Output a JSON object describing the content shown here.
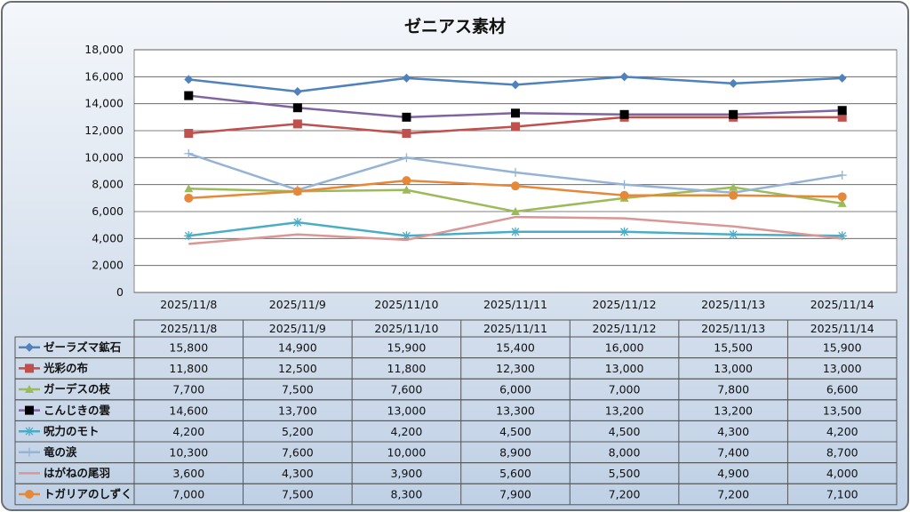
{
  "chart_data": {
    "type": "line",
    "title": "ゼニアス素材",
    "xlabel": "",
    "ylabel": "",
    "ylim": [
      0,
      18000
    ],
    "yticks": [
      "0",
      "2,000",
      "4,000",
      "6,000",
      "8,000",
      "10,000",
      "12,000",
      "14,000",
      "16,000",
      "18,000"
    ],
    "grid": true,
    "legend": "data-table-bottom",
    "categories": [
      "2025/11/8",
      "2025/11/9",
      "2025/11/10",
      "2025/11/11",
      "2025/11/12",
      "2025/11/13",
      "2025/11/14"
    ],
    "series": [
      {
        "name": "ゼーラズマ鉱石",
        "color": "#4f81bd",
        "marker": "diamond",
        "values": [
          15800,
          14900,
          15900,
          15400,
          16000,
          15500,
          15900
        ],
        "labels": [
          "15,800",
          "14,900",
          "15,900",
          "15,400",
          "16,000",
          "15,500",
          "15,900"
        ]
      },
      {
        "name": "光彩の布",
        "color": "#c0504d",
        "marker": "square",
        "values": [
          11800,
          12500,
          11800,
          12300,
          13000,
          13000,
          13000
        ],
        "labels": [
          "11,800",
          "12,500",
          "11,800",
          "12,300",
          "13,000",
          "13,000",
          "13,000"
        ]
      },
      {
        "name": "ガーデスの枝",
        "color": "#9bbb59",
        "marker": "triangle",
        "values": [
          7700,
          7500,
          7600,
          6000,
          7000,
          7800,
          6600
        ],
        "labels": [
          "7,700",
          "7,500",
          "7,600",
          "6,000",
          "7,000",
          "7,800",
          "6,600"
        ]
      },
      {
        "name": "こんじきの雲",
        "color": "#8064a2",
        "markerColor": "#000000",
        "marker": "square",
        "values": [
          14600,
          13700,
          13000,
          13300,
          13200,
          13200,
          13500
        ],
        "labels": [
          "14,600",
          "13,700",
          "13,000",
          "13,300",
          "13,200",
          "13,200",
          "13,500"
        ]
      },
      {
        "name": "呪力のモト",
        "color": "#4bacc6",
        "marker": "star",
        "values": [
          4200,
          5200,
          4200,
          4500,
          4500,
          4300,
          4200
        ],
        "labels": [
          "4,200",
          "5,200",
          "4,200",
          "4,500",
          "4,500",
          "4,300",
          "4,200"
        ]
      },
      {
        "name": "竜の涙",
        "color": "#95b3d7",
        "marker": "plus",
        "values": [
          10300,
          7600,
          10000,
          8900,
          8000,
          7400,
          8700
        ],
        "labels": [
          "10,300",
          "7,600",
          "10,000",
          "8,900",
          "8,000",
          "7,400",
          "8,700"
        ]
      },
      {
        "name": "はがねの尾羽",
        "color": "#d99694",
        "marker": "none",
        "values": [
          3600,
          4300,
          3900,
          5600,
          5500,
          4900,
          4000
        ],
        "labels": [
          "3,600",
          "4,300",
          "3,900",
          "5,600",
          "5,500",
          "4,900",
          "4,000"
        ]
      },
      {
        "name": "トガリアのしずく",
        "color": "#e6883a",
        "marker": "circle",
        "values": [
          7000,
          7500,
          8300,
          7900,
          7200,
          7200,
          7100
        ],
        "labels": [
          "7,000",
          "7,500",
          "8,300",
          "7,900",
          "7,200",
          "7,200",
          "7,100"
        ]
      }
    ]
  }
}
